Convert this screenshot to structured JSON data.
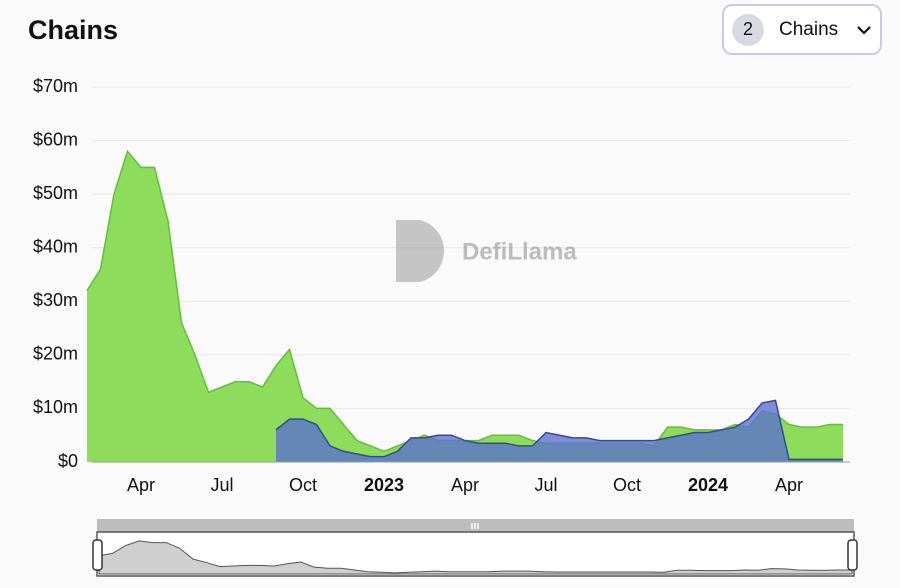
{
  "chart_data": {
    "type": "area",
    "title": "Chains",
    "selector": {
      "count": 2,
      "label": "Chains"
    },
    "watermark": "DefiLlama",
    "categories": [
      null,
      null,
      null,
      null,
      "Apr",
      null,
      null,
      null,
      null,
      null,
      "Jul",
      null,
      null,
      null,
      null,
      null,
      "Oct",
      null,
      null,
      null,
      null,
      null,
      "2023",
      null,
      null,
      null,
      null,
      null,
      "Apr",
      null,
      null,
      null,
      null,
      null,
      "Jul",
      null,
      null,
      null,
      null,
      null,
      "Oct",
      null,
      null,
      null,
      null,
      null,
      "2024",
      null,
      null,
      null,
      null,
      null,
      "Apr",
      null,
      null,
      null,
      null
    ],
    "series": [
      {
        "color": "#8ddc5c",
        "values": [
          32,
          36,
          50,
          58,
          55,
          55,
          45,
          26,
          20,
          13,
          14,
          15,
          15,
          14,
          18,
          21,
          12,
          10,
          10,
          7,
          4,
          3,
          2,
          3,
          4,
          5,
          4,
          4,
          4,
          4,
          5,
          5,
          5,
          4,
          3.5,
          3.5,
          3.5,
          3.5,
          3.5,
          3.5,
          3.5,
          3.5,
          3,
          6.5,
          6.5,
          6,
          6,
          6,
          7,
          6.5,
          9.5,
          9,
          7,
          6.5,
          6.5,
          7,
          7
        ]
      },
      {
        "color": "#5a6fd0",
        "values": [
          null,
          null,
          null,
          null,
          null,
          null,
          null,
          null,
          null,
          null,
          null,
          null,
          null,
          null,
          6,
          8,
          8,
          7,
          3,
          2,
          1.5,
          1,
          1,
          2,
          4.5,
          4.5,
          5,
          5,
          4,
          3.5,
          3.5,
          3.5,
          3,
          3,
          5.5,
          5,
          4.5,
          4.5,
          4,
          4,
          4,
          4,
          4,
          4.5,
          5,
          5.5,
          5.5,
          6,
          6.5,
          8,
          11,
          11.5,
          0.5,
          0.5,
          0.5,
          0.5,
          0.5
        ]
      }
    ],
    "ylim": [
      0,
      70
    ],
    "yticks": [
      {
        "value": 0,
        "label": "$0"
      },
      {
        "value": 10,
        "label": "$10m"
      },
      {
        "value": 20,
        "label": "$20m"
      },
      {
        "value": 30,
        "label": "$30m"
      },
      {
        "value": 40,
        "label": "$40m"
      },
      {
        "value": 50,
        "label": "$50m"
      },
      {
        "value": 60,
        "label": "$60m"
      },
      {
        "value": 70,
        "label": "$70m"
      }
    ],
    "grid": true
  }
}
